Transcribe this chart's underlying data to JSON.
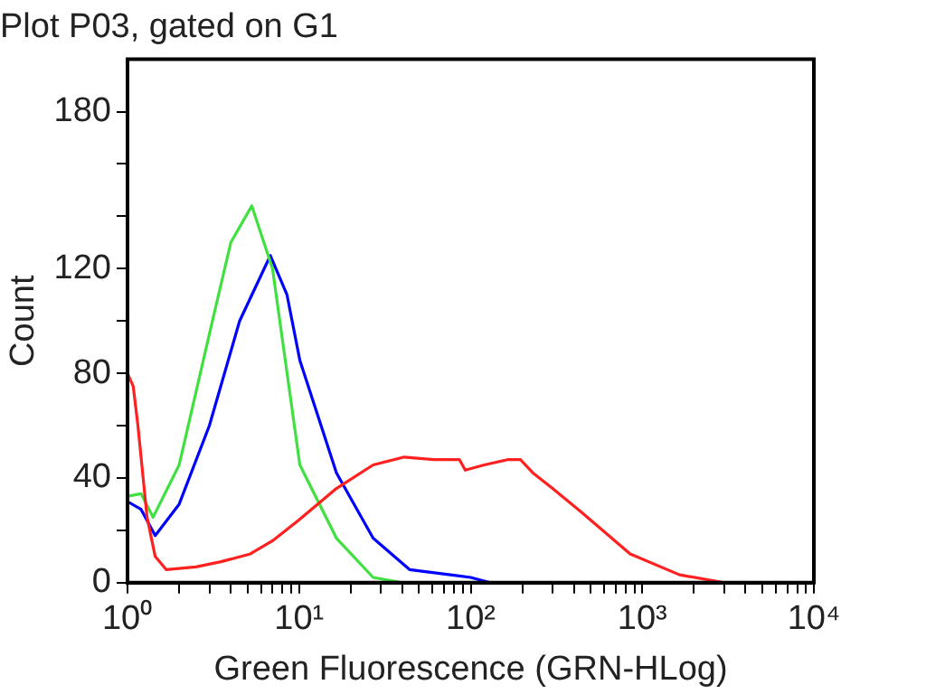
{
  "chart_data": {
    "type": "line",
    "title": "Plot P03, gated on G1",
    "xlabel": "Green Fluorescence (GRN-HLog)",
    "ylabel": "Count",
    "log": "x",
    "grid": false,
    "marker": "none",
    "line_style": "solid",
    "xlim": [
      1,
      10000
    ],
    "ylim": [
      0,
      200
    ],
    "xticks": [
      {
        "value": 1,
        "label": "10⁰"
      },
      {
        "value": 2,
        "label": null
      },
      {
        "value": 3,
        "label": null
      },
      {
        "value": 4,
        "label": null
      },
      {
        "value": 5,
        "label": null
      },
      {
        "value": 6,
        "label": null
      },
      {
        "value": 7,
        "label": null
      },
      {
        "value": 8,
        "label": null
      },
      {
        "value": 9,
        "label": null
      },
      {
        "value": 10,
        "label": "10¹"
      },
      {
        "value": 20,
        "label": null
      },
      {
        "value": 30,
        "label": null
      },
      {
        "value": 40,
        "label": null
      },
      {
        "value": 50,
        "label": null
      },
      {
        "value": 60,
        "label": null
      },
      {
        "value": 70,
        "label": null
      },
      {
        "value": 80,
        "label": null
      },
      {
        "value": 90,
        "label": null
      },
      {
        "value": 100,
        "label": "10²"
      },
      {
        "value": 200,
        "label": null
      },
      {
        "value": 300,
        "label": null
      },
      {
        "value": 400,
        "label": null
      },
      {
        "value": 500,
        "label": null
      },
      {
        "value": 600,
        "label": null
      },
      {
        "value": 700,
        "label": null
      },
      {
        "value": 800,
        "label": null
      },
      {
        "value": 900,
        "label": null
      },
      {
        "value": 1000,
        "label": "10³"
      },
      {
        "value": 2000,
        "label": null
      },
      {
        "value": 3000,
        "label": null
      },
      {
        "value": 4000,
        "label": null
      },
      {
        "value": 5000,
        "label": null
      },
      {
        "value": 6000,
        "label": null
      },
      {
        "value": 7000,
        "label": null
      },
      {
        "value": 8000,
        "label": null
      },
      {
        "value": 9000,
        "label": null
      },
      {
        "value": 10000,
        "label": "10⁴"
      }
    ],
    "yticks": [
      0,
      {
        "value": 20,
        "label": null
      },
      40,
      {
        "value": 60,
        "label": null
      },
      80,
      {
        "value": 100,
        "label": null
      },
      120,
      {
        "value": 140,
        "label": null
      },
      {
        "value": 160,
        "label": null
      },
      180
    ],
    "series": [
      {
        "color": "#ff2020",
        "x": [
          1,
          1.08,
          1.15,
          1.3,
          1.45,
          1.68,
          2.5,
          3.5,
          5.2,
          7,
          10,
          16.5,
          27,
          41,
          61,
          86,
          93,
          120,
          164,
          195,
          230,
          300,
          440,
          850,
          1650,
          3000
        ],
        "values": [
          80,
          75,
          60,
          25,
          10,
          5,
          6,
          8,
          11,
          16,
          24,
          36,
          45,
          48,
          47,
          47,
          43,
          45,
          47,
          47,
          42,
          36,
          27,
          11,
          3,
          0
        ]
      },
      {
        "color": "#40e040",
        "x": [
          1,
          1.2,
          1.41,
          2,
          3,
          4,
          5.3,
          7,
          10.1,
          16.5,
          27,
          40
        ],
        "values": [
          33,
          34,
          25,
          45,
          95,
          130,
          144,
          120,
          45,
          17,
          2,
          0
        ]
      },
      {
        "color": "#0000ff",
        "x": [
          1,
          1.2,
          1.45,
          2,
          3,
          4.5,
          6.8,
          8.5,
          10.1,
          16.5,
          27,
          44,
          100,
          130
        ],
        "values": [
          31,
          28,
          18,
          30,
          60,
          100,
          125,
          110,
          85,
          42,
          17,
          5,
          2,
          0
        ]
      }
    ]
  }
}
